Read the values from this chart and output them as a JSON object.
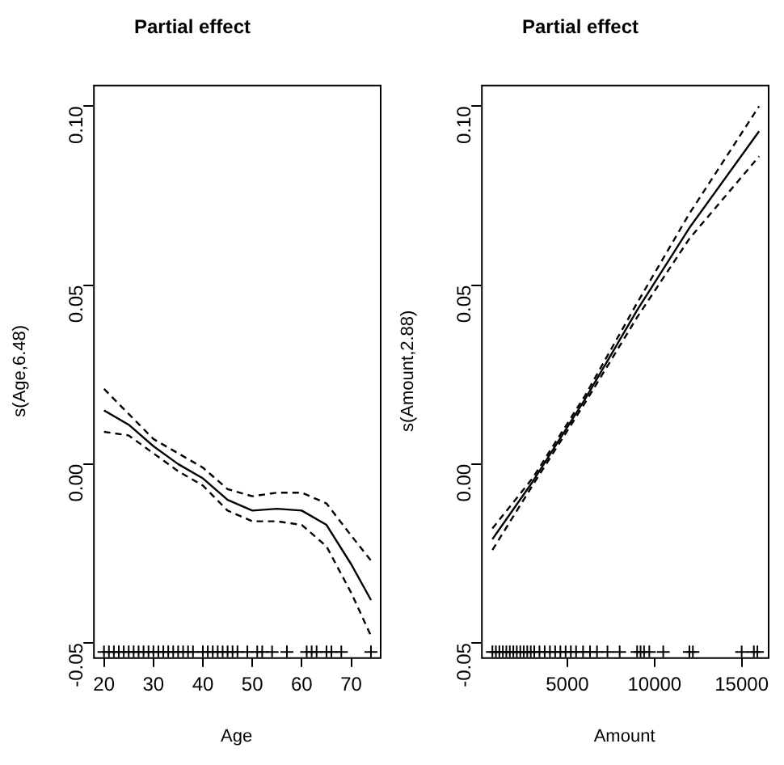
{
  "chart_data": [
    {
      "type": "line",
      "title": "Partial effect",
      "xlabel": "Age",
      "ylabel": "s(Age,6.48)",
      "xlim": [
        17.8,
        75.8
      ],
      "xticks": [
        20,
        30,
        40,
        50,
        60,
        70
      ],
      "ylim": [
        -0.054,
        0.106
      ],
      "yticks": [
        {
          "value": -0.05,
          "label": "-0.05"
        },
        {
          "value": 0,
          "label": "0.00"
        },
        {
          "value": 0.05,
          "label": "0.05"
        },
        {
          "value": 0.1,
          "label": "0.10"
        }
      ],
      "series": [
        {
          "color": "#000000",
          "line_style": "solid",
          "marker": "none",
          "x": [
            20,
            25,
            30,
            35,
            40,
            45,
            50,
            55,
            60,
            65,
            70,
            74
          ],
          "values": [
            0.015,
            0.011,
            0.005,
            0.0,
            -0.004,
            -0.01,
            -0.013,
            -0.0125,
            -0.013,
            -0.017,
            -0.028,
            -0.038
          ]
        },
        {
          "color": "#000000",
          "line_style": "dashed",
          "marker": "none",
          "x": [
            20,
            25,
            30,
            35,
            40,
            45,
            50,
            55,
            60,
            65,
            70,
            74
          ],
          "values": [
            0.021,
            0.014,
            0.007,
            0.003,
            -0.001,
            -0.007,
            -0.009,
            -0.008,
            -0.008,
            -0.011,
            -0.02,
            -0.027
          ]
        },
        {
          "color": "#000000",
          "line_style": "dashed",
          "marker": "none",
          "x": [
            20,
            25,
            30,
            35,
            40,
            45,
            50,
            55,
            60,
            65,
            70,
            74
          ],
          "values": [
            0.009,
            0.008,
            0.003,
            -0.002,
            -0.006,
            -0.013,
            -0.016,
            -0.016,
            -0.017,
            -0.023,
            -0.036,
            -0.048
          ]
        },
        {
          "type": "scatter",
          "color": "#000000",
          "marker": "cross",
          "x": [
            20,
            21,
            22,
            23,
            24,
            25,
            26,
            27,
            28,
            29,
            30,
            31,
            32,
            33,
            34,
            35,
            36,
            37,
            38,
            40,
            41,
            42,
            43,
            44,
            45,
            46,
            47,
            49,
            51,
            52,
            54,
            57,
            61,
            62,
            63,
            65,
            66,
            68,
            74
          ],
          "values": [
            -0.0525,
            -0.0525,
            -0.0525,
            -0.0525,
            -0.0525,
            -0.0525,
            -0.0525,
            -0.0525,
            -0.0525,
            -0.0525,
            -0.0525,
            -0.0525,
            -0.0525,
            -0.0525,
            -0.0525,
            -0.0525,
            -0.0525,
            -0.0525,
            -0.0525,
            -0.0525,
            -0.0525,
            -0.0525,
            -0.0525,
            -0.0525,
            -0.0525,
            -0.0525,
            -0.0525,
            -0.0525,
            -0.0525,
            -0.0525,
            -0.0525,
            -0.0525,
            -0.0525,
            -0.0525,
            -0.0525,
            -0.0525,
            -0.0525,
            -0.0525,
            -0.0525
          ]
        }
      ]
    },
    {
      "type": "line",
      "title": "Partial effect",
      "xlabel": "Amount",
      "ylabel": "s(Amount,2.88)",
      "xlim": [
        50,
        16500
      ],
      "xticks": [
        5000,
        10000,
        15000
      ],
      "ylim": [
        -0.054,
        0.106
      ],
      "yticks": [
        {
          "value": -0.05,
          "label": "-0.05"
        },
        {
          "value": 0,
          "label": "0.00"
        },
        {
          "value": 0.05,
          "label": "0.05"
        },
        {
          "value": 0.1,
          "label": "0.10"
        }
      ],
      "series": [
        {
          "color": "#000000",
          "line_style": "solid",
          "marker": "none",
          "x": [
            700,
            3000,
            6000,
            9000,
            12000,
            16000
          ],
          "values": [
            -0.021,
            -0.005,
            0.018,
            0.043,
            0.066,
            0.093
          ]
        },
        {
          "color": "#000000",
          "line_style": "dashed",
          "marker": "none",
          "x": [
            700,
            3000,
            6000,
            9000,
            12000,
            16000
          ],
          "values": [
            -0.018,
            -0.004,
            0.019,
            0.045,
            0.07,
            0.1
          ]
        },
        {
          "color": "#000000",
          "line_style": "dashed",
          "marker": "none",
          "x": [
            700,
            3000,
            6000,
            9000,
            12000,
            16000
          ],
          "values": [
            -0.024,
            -0.006,
            0.017,
            0.041,
            0.063,
            0.086
          ]
        },
        {
          "type": "scatter",
          "color": "#000000",
          "marker": "cross",
          "x": [
            700,
            900,
            1100,
            1300,
            1500,
            1700,
            1900,
            2100,
            2300,
            2500,
            2700,
            2900,
            3100,
            3400,
            3700,
            4000,
            4300,
            4600,
            4900,
            5200,
            5500,
            5900,
            6300,
            6700,
            7300,
            8000,
            9000,
            9200,
            9400,
            9700,
            10500,
            12000,
            12200,
            15000,
            15700,
            15900
          ],
          "values": [
            -0.0525,
            -0.0525,
            -0.0525,
            -0.0525,
            -0.0525,
            -0.0525,
            -0.0525,
            -0.0525,
            -0.0525,
            -0.0525,
            -0.0525,
            -0.0525,
            -0.0525,
            -0.0525,
            -0.0525,
            -0.0525,
            -0.0525,
            -0.0525,
            -0.0525,
            -0.0525,
            -0.0525,
            -0.0525,
            -0.0525,
            -0.0525,
            -0.0525,
            -0.0525,
            -0.0525,
            -0.0525,
            -0.0525,
            -0.0525,
            -0.0525,
            -0.0525,
            -0.0525,
            -0.0525,
            -0.0525,
            -0.0525
          ]
        }
      ]
    }
  ]
}
